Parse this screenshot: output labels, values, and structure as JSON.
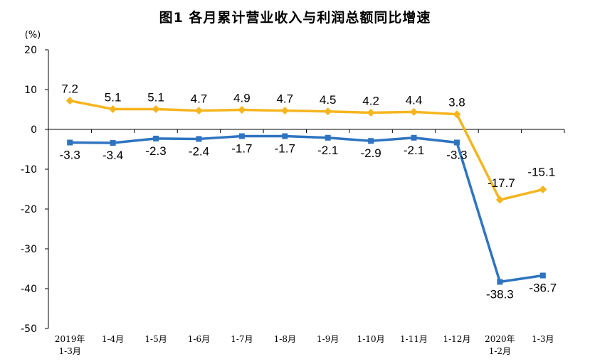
{
  "chart_data": {
    "type": "line",
    "title": "图1  各月累计营业收入与利润总额同比增速",
    "y_unit": "(%)",
    "categories": [
      "2019年\n1-3月",
      "1-4月",
      "1-5月",
      "1-6月",
      "1-7月",
      "1-8月",
      "1-9月",
      "1-10月",
      "1-11月",
      "1-12月",
      "2020年\n1-2月",
      "1-3月"
    ],
    "ylim": [
      -50,
      20
    ],
    "yticks": [
      20,
      10,
      0,
      -10,
      -20,
      -30,
      -40,
      -50
    ],
    "grid": false,
    "legend": "none",
    "series": [
      {
        "color": "#f5b51f",
        "marker": "diamond",
        "values": [
          7.2,
          5.1,
          5.1,
          4.7,
          4.9,
          4.7,
          4.5,
          4.2,
          4.4,
          3.8,
          -17.7,
          -15.1
        ],
        "labels": [
          "7.2",
          "5.1",
          "5.1",
          "4.7",
          "4.9",
          "4.7",
          "4.5",
          "4.2",
          "4.4",
          "3.8",
          "-17.7",
          "-15.1"
        ]
      },
      {
        "color": "#2e74c0",
        "marker": "square",
        "values": [
          -3.3,
          -3.4,
          -2.3,
          -2.4,
          -1.7,
          -1.7,
          -2.1,
          -2.9,
          -2.1,
          -3.3,
          -38.3,
          -36.7
        ],
        "labels": [
          "-3.3",
          "-3.4",
          "-2.3",
          "-2.4",
          "-1.7",
          "-1.7",
          "-2.1",
          "-2.9",
          "-2.1",
          "-3.3",
          "-38.3",
          "-36.7"
        ]
      }
    ]
  }
}
